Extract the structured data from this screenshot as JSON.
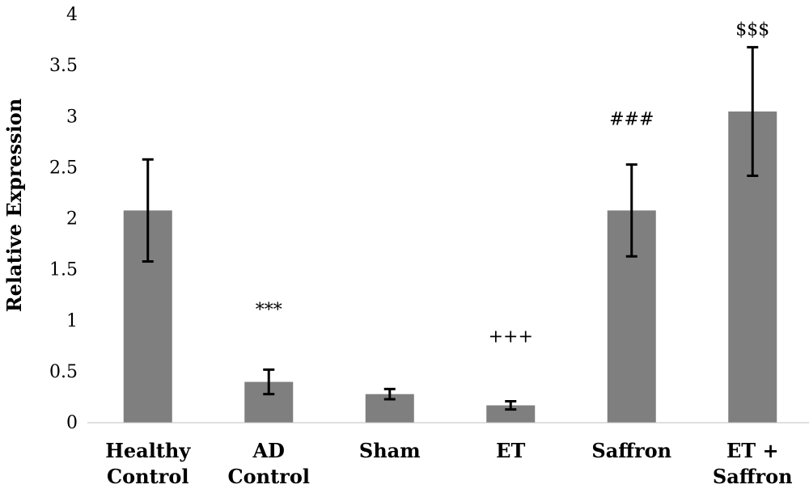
{
  "chart_data": {
    "type": "bar",
    "title": "",
    "xlabel": "",
    "ylabel": "Relative Expression",
    "ylim": [
      0,
      4
    ],
    "yticks": [
      "0",
      "0.5",
      "1",
      "1.5",
      "2",
      "2.5",
      "3",
      "3.5",
      "4"
    ],
    "grid": false,
    "bar_color": "#7f7f7f",
    "categories": [
      [
        "Healthy",
        "Control"
      ],
      [
        "AD",
        "Control"
      ],
      [
        "Sham"
      ],
      [
        "ET"
      ],
      [
        "Saffron"
      ],
      [
        "ET +",
        "Saffron"
      ]
    ],
    "values": [
      2.08,
      0.4,
      0.28,
      0.17,
      2.08,
      3.05
    ],
    "errors": [
      0.5,
      0.12,
      0.05,
      0.04,
      0.45,
      0.63
    ],
    "annotations": [
      "",
      "***",
      "",
      "+++",
      "###",
      "$$$"
    ],
    "annotation_y": [
      null,
      1.05,
      null,
      0.79,
      2.92,
      3.8
    ]
  }
}
